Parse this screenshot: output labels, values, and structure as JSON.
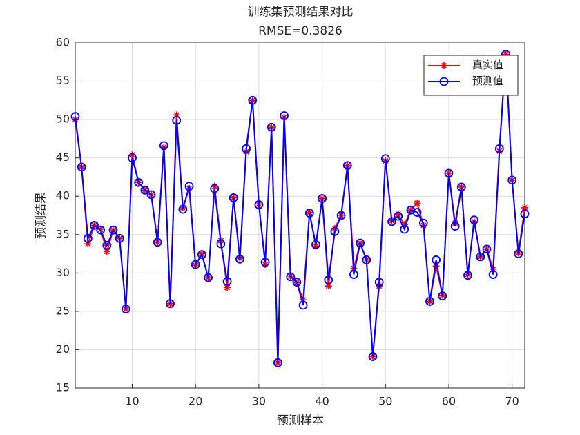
{
  "chart_data": {
    "type": "line",
    "title": "训练集预测结果对比",
    "subtitle": "RMSE=0.3826",
    "x_label": "预测样本",
    "y_label": "预测结果",
    "x": [
      1,
      2,
      3,
      4,
      5,
      6,
      7,
      8,
      9,
      10,
      11,
      12,
      13,
      14,
      15,
      16,
      17,
      18,
      19,
      20,
      21,
      22,
      23,
      24,
      25,
      26,
      27,
      28,
      29,
      30,
      31,
      32,
      33,
      34,
      35,
      36,
      37,
      38,
      39,
      40,
      41,
      42,
      43,
      44,
      45,
      46,
      47,
      48,
      49,
      50,
      51,
      52,
      53,
      54,
      55,
      56,
      57,
      58,
      59,
      60,
      61,
      62,
      63,
      64,
      65,
      66,
      67,
      68,
      69,
      70,
      71,
      72
    ],
    "series": [
      {
        "name": "真实值",
        "color": "#ff0000",
        "marker": "asterisk",
        "values": [
          50,
          43.8,
          33.8,
          36.2,
          35.7,
          32.8,
          35.6,
          34.5,
          25.3,
          45.4,
          41.8,
          40.8,
          40.2,
          34,
          46.4,
          26,
          50.6,
          38.5,
          41,
          31,
          32.5,
          29.4,
          41.3,
          34.2,
          28.1,
          39.8,
          31.9,
          45.8,
          52.5,
          39,
          31.1,
          49,
          18.3,
          50.3,
          29.6,
          28.7,
          26.5,
          37.9,
          33.5,
          39.7,
          28.3,
          35.8,
          37.5,
          44,
          30.6,
          33.9,
          31.7,
          19.1,
          28.3,
          44.6,
          36.8,
          37.7,
          36.3,
          38.2,
          39.1,
          36.2,
          26.3,
          30.9,
          27.1,
          43,
          36.5,
          41.2,
          29.8,
          36.7,
          32.1,
          33.1,
          30.5,
          45.9,
          58.5,
          42.1,
          32.6,
          38.5
        ]
      },
      {
        "name": "预测值",
        "color": "#0000ff",
        "marker": "circle",
        "values": [
          50.4,
          43.8,
          34.5,
          36.2,
          35.6,
          33.6,
          35.6,
          34.5,
          25.3,
          45,
          41.8,
          40.8,
          40.2,
          34,
          46.6,
          26,
          49.9,
          38.3,
          41.3,
          31.1,
          32.4,
          29.4,
          41,
          33.8,
          28.9,
          39.8,
          31.8,
          46.2,
          52.5,
          38.9,
          31.4,
          49,
          18.3,
          50.5,
          29.5,
          28.8,
          25.8,
          37.8,
          33.7,
          39.7,
          29.1,
          35.4,
          37.5,
          44,
          29.8,
          33.9,
          31.7,
          19.1,
          28.8,
          44.9,
          36.7,
          37.4,
          35.7,
          38.2,
          37.9,
          36.5,
          26.3,
          31.7,
          27,
          43,
          36.1,
          41.2,
          29.7,
          36.9,
          32.1,
          33.1,
          29.8,
          46.2,
          58.5,
          42.1,
          32.5,
          37.7
        ]
      }
    ],
    "xlim": [
      1,
      72
    ],
    "xticks": [
      10,
      20,
      30,
      40,
      50,
      60,
      70
    ],
    "ylim": [
      15,
      60
    ],
    "yticks": [
      15,
      20,
      25,
      30,
      35,
      40,
      45,
      50,
      55,
      60
    ],
    "grid": true,
    "legend": "northeast"
  }
}
